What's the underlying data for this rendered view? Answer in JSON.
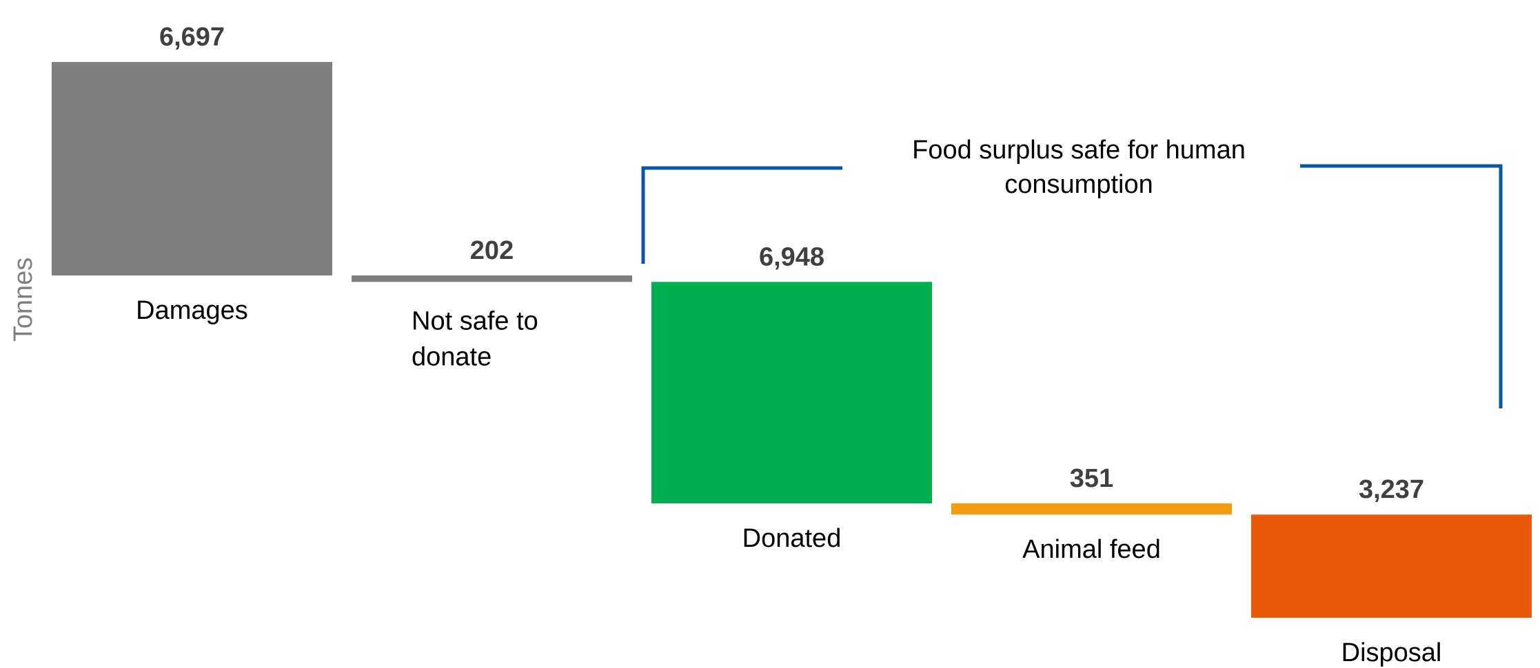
{
  "chart_data": {
    "type": "bar",
    "ylabel": "Tonnes",
    "categories": [
      "Damages",
      "Not safe to donate",
      "Donated",
      "Animal feed",
      "Disposal"
    ],
    "values": [
      6697,
      202,
      6948,
      351,
      3237
    ],
    "value_labels": [
      "6,697",
      "202",
      "6,948",
      "351",
      "3,237"
    ],
    "category_label_lines": [
      [
        "Damages"
      ],
      [
        "Not safe to",
        "donate"
      ],
      [
        "Donated"
      ],
      [
        "Animal feed"
      ],
      [
        "Disposal"
      ]
    ],
    "colors": [
      "#7f7f7f",
      "#7f7f7f",
      "#00b050",
      "#f39c12",
      "#e8590c"
    ],
    "annotation": {
      "text_lines": [
        "Food surplus safe for human",
        "consumption"
      ],
      "bracket_color": "#0b56a3",
      "spans_categories": [
        "Donated",
        "Animal feed",
        "Disposal"
      ]
    }
  }
}
